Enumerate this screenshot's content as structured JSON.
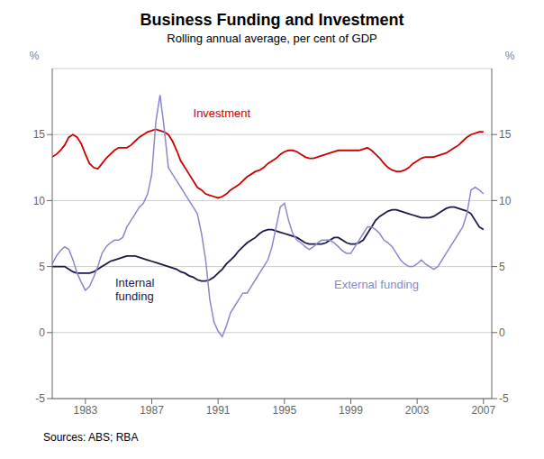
{
  "chart_data": {
    "type": "line",
    "title": "Business Funding and Investment",
    "subtitle": "Rolling annual average, per cent of GDP",
    "source": "Sources: ABS; RBA",
    "ylabel": "%",
    "y2label": "%",
    "xlim": [
      1981.0,
      2007.5
    ],
    "ylim": [
      -5,
      20
    ],
    "yticks": [
      -5,
      0,
      5,
      10,
      15
    ],
    "y2lim": [
      -5,
      20
    ],
    "y2ticks": [
      -5,
      0,
      5,
      10,
      15
    ],
    "xticks": [
      1983,
      1987,
      1991,
      1995,
      1999,
      2003,
      2007
    ],
    "grid": true,
    "x": [
      1981.0,
      1981.25,
      1981.5,
      1981.75,
      1982.0,
      1982.25,
      1982.5,
      1982.75,
      1983.0,
      1983.25,
      1983.5,
      1983.75,
      1984.0,
      1984.25,
      1984.5,
      1984.75,
      1985.0,
      1985.25,
      1985.5,
      1985.75,
      1986.0,
      1986.25,
      1986.5,
      1986.75,
      1987.0,
      1987.25,
      1987.5,
      1987.75,
      1988.0,
      1988.25,
      1988.5,
      1988.75,
      1989.0,
      1989.25,
      1989.5,
      1989.75,
      1990.0,
      1990.25,
      1990.5,
      1990.75,
      1991.0,
      1991.25,
      1991.5,
      1991.75,
      1992.0,
      1992.25,
      1992.5,
      1992.75,
      1993.0,
      1993.25,
      1993.5,
      1993.75,
      1994.0,
      1994.25,
      1994.5,
      1994.75,
      1995.0,
      1995.25,
      1995.5,
      1995.75,
      1996.0,
      1996.25,
      1996.5,
      1996.75,
      1997.0,
      1997.25,
      1997.5,
      1997.75,
      1998.0,
      1998.25,
      1998.5,
      1998.75,
      1999.0,
      1999.25,
      1999.5,
      1999.75,
      2000.0,
      2000.25,
      2000.5,
      2000.75,
      2001.0,
      2001.25,
      2001.5,
      2001.75,
      2002.0,
      2002.25,
      2002.5,
      2002.75,
      2003.0,
      2003.25,
      2003.5,
      2003.75,
      2004.0,
      2004.25,
      2004.5,
      2004.75,
      2005.0,
      2005.25,
      2005.5,
      2005.75,
      2006.0,
      2006.25,
      2006.5,
      2006.75,
      2007.0
    ],
    "series": [
      {
        "name": "Investment",
        "color": "#cc0000",
        "values": [
          13.3,
          13.5,
          13.8,
          14.2,
          14.8,
          15.0,
          14.8,
          14.3,
          13.5,
          12.8,
          12.5,
          12.4,
          12.8,
          13.2,
          13.5,
          13.8,
          14.0,
          14.0,
          14.0,
          14.2,
          14.5,
          14.8,
          15.0,
          15.2,
          15.3,
          15.4,
          15.3,
          15.2,
          15.0,
          14.5,
          13.8,
          13.0,
          12.5,
          12.0,
          11.5,
          11.0,
          10.8,
          10.5,
          10.4,
          10.3,
          10.2,
          10.3,
          10.5,
          10.8,
          11.0,
          11.2,
          11.5,
          11.8,
          12.0,
          12.2,
          12.3,
          12.5,
          12.8,
          13.0,
          13.2,
          13.5,
          13.7,
          13.8,
          13.8,
          13.7,
          13.5,
          13.3,
          13.2,
          13.2,
          13.3,
          13.4,
          13.5,
          13.6,
          13.7,
          13.8,
          13.8,
          13.8,
          13.8,
          13.8,
          13.8,
          13.9,
          14.0,
          13.8,
          13.5,
          13.2,
          12.8,
          12.5,
          12.3,
          12.2,
          12.2,
          12.3,
          12.5,
          12.8,
          13.0,
          13.2,
          13.3,
          13.3,
          13.3,
          13.4,
          13.5,
          13.6,
          13.8,
          14.0,
          14.2,
          14.5,
          14.8,
          15.0,
          15.1,
          15.2,
          15.2
        ]
      },
      {
        "name": "Internal\nfunding",
        "color": "#1a1a4a",
        "values": [
          5.0,
          5.0,
          5.0,
          5.0,
          4.8,
          4.6,
          4.5,
          4.5,
          4.5,
          4.5,
          4.6,
          4.8,
          5.0,
          5.2,
          5.4,
          5.5,
          5.6,
          5.7,
          5.8,
          5.8,
          5.8,
          5.7,
          5.6,
          5.5,
          5.4,
          5.3,
          5.2,
          5.1,
          5.0,
          4.9,
          4.8,
          4.6,
          4.5,
          4.3,
          4.2,
          4.0,
          3.9,
          3.9,
          4.0,
          4.2,
          4.5,
          4.8,
          5.2,
          5.5,
          5.8,
          6.2,
          6.5,
          6.8,
          7.0,
          7.2,
          7.5,
          7.7,
          7.8,
          7.8,
          7.7,
          7.6,
          7.5,
          7.4,
          7.3,
          7.2,
          7.0,
          6.8,
          6.7,
          6.7,
          6.7,
          6.7,
          6.8,
          7.0,
          7.2,
          7.2,
          7.0,
          6.8,
          6.7,
          6.7,
          6.8,
          7.0,
          7.5,
          8.0,
          8.5,
          8.8,
          9.0,
          9.2,
          9.3,
          9.3,
          9.2,
          9.1,
          9.0,
          8.9,
          8.8,
          8.7,
          8.7,
          8.7,
          8.8,
          9.0,
          9.2,
          9.4,
          9.5,
          9.5,
          9.4,
          9.3,
          9.2,
          9.0,
          8.5,
          8.0,
          7.8
        ]
      },
      {
        "name": "External funding",
        "color": "#8888cc",
        "values": [
          5.2,
          5.8,
          6.2,
          6.5,
          6.3,
          5.5,
          4.5,
          3.8,
          3.2,
          3.5,
          4.2,
          5.0,
          6.0,
          6.5,
          6.8,
          7.0,
          7.0,
          7.2,
          8.0,
          8.5,
          9.0,
          9.5,
          9.8,
          10.5,
          12.0,
          16.0,
          18.0,
          15.5,
          12.5,
          12.0,
          11.5,
          11.0,
          10.5,
          10.0,
          9.5,
          9.0,
          7.5,
          5.5,
          2.5,
          0.8,
          0.1,
          -0.3,
          0.5,
          1.5,
          2.0,
          2.5,
          3.0,
          3.0,
          3.5,
          4.0,
          4.5,
          5.0,
          5.5,
          6.5,
          8.0,
          9.5,
          9.8,
          8.5,
          7.5,
          7.0,
          6.8,
          6.5,
          6.3,
          6.5,
          6.8,
          7.0,
          7.0,
          7.0,
          6.8,
          6.5,
          6.2,
          6.0,
          6.0,
          6.5,
          7.0,
          7.5,
          8.0,
          8.0,
          7.8,
          7.5,
          7.0,
          6.8,
          6.5,
          6.0,
          5.5,
          5.2,
          5.0,
          5.0,
          5.2,
          5.5,
          5.2,
          5.0,
          4.8,
          5.0,
          5.5,
          6.0,
          6.5,
          7.0,
          7.5,
          8.0,
          9.0,
          10.8,
          11.0,
          10.8,
          10.5
        ]
      }
    ],
    "annotations": [
      {
        "text": "Investment",
        "x": 1989.5,
        "y": 16.3
      },
      {
        "text": "Internal\nfunding",
        "x": 1984.8,
        "y": 3.5
      },
      {
        "text": "External funding",
        "x": 1998.0,
        "y": 3.3
      }
    ]
  }
}
